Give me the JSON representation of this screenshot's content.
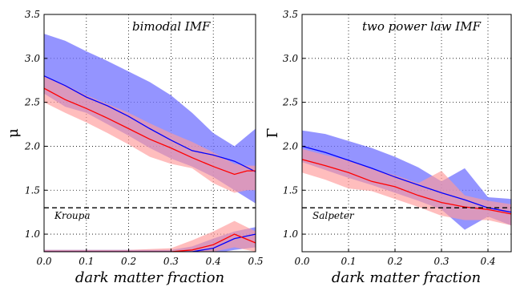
{
  "chart_data": [
    {
      "type": "area",
      "title": "",
      "annotation": "bimodal IMF",
      "xlabel": "dark matter fraction",
      "ylabel": "μ",
      "xlim": [
        0.0,
        0.5
      ],
      "ylim": [
        0.8,
        3.5
      ],
      "xticks": [
        "0.0",
        "0.1",
        "0.2",
        "0.3",
        "0.4",
        "0.5"
      ],
      "yticks": [
        "1.0",
        "1.5",
        "2.0",
        "2.5",
        "3.0",
        "3.5"
      ],
      "grid": true,
      "reference_line": {
        "label": "Kroupa",
        "y": 1.3
      },
      "colors": {
        "blue": "#0000ff",
        "red": "#ff0000",
        "blue_band": "#7070ff",
        "red_band": "#ff9999"
      },
      "series": [
        {
          "color": "blue",
          "x": [
            0.0,
            0.05,
            0.1,
            0.15,
            0.2,
            0.25,
            0.3,
            0.35,
            0.4,
            0.45,
            0.5
          ],
          "values": [
            2.8,
            2.69,
            2.56,
            2.46,
            2.34,
            2.2,
            2.07,
            1.95,
            1.9,
            1.83,
            1.71
          ],
          "band_low": [
            2.6,
            2.45,
            2.38,
            2.25,
            2.12,
            1.98,
            1.86,
            1.77,
            1.65,
            1.5,
            1.35
          ],
          "band_high": [
            3.28,
            3.2,
            3.08,
            2.97,
            2.85,
            2.73,
            2.58,
            2.38,
            2.15,
            2.0,
            2.2
          ]
        },
        {
          "color": "red",
          "x": [
            0.0,
            0.05,
            0.1,
            0.15,
            0.2,
            0.25,
            0.3,
            0.35,
            0.4,
            0.45,
            0.48,
            0.5
          ],
          "values": [
            2.66,
            2.53,
            2.43,
            2.32,
            2.2,
            2.08,
            1.98,
            1.87,
            1.77,
            1.68,
            1.72,
            1.72
          ],
          "band_low": [
            2.5,
            2.38,
            2.27,
            2.15,
            2.02,
            1.88,
            1.8,
            1.75,
            1.58,
            1.47,
            1.5,
            1.5
          ],
          "band_high": [
            2.8,
            2.7,
            2.58,
            2.48,
            2.38,
            2.26,
            2.15,
            2.05,
            1.93,
            1.8,
            1.78,
            1.78
          ]
        },
        {
          "color": "blue",
          "x": [
            0.0,
            0.1,
            0.2,
            0.3,
            0.35,
            0.4,
            0.45,
            0.5
          ],
          "values": [
            0.8,
            0.8,
            0.8,
            0.8,
            0.8,
            0.84,
            0.95,
            1.0
          ],
          "band_low": [
            0.78,
            0.78,
            0.78,
            0.78,
            0.78,
            0.78,
            0.82,
            0.85
          ],
          "band_high": [
            0.82,
            0.82,
            0.82,
            0.82,
            0.86,
            0.95,
            1.03,
            1.08
          ]
        },
        {
          "color": "red",
          "x": [
            0.0,
            0.1,
            0.2,
            0.3,
            0.35,
            0.4,
            0.45,
            0.5
          ],
          "values": [
            0.8,
            0.8,
            0.8,
            0.8,
            0.82,
            0.88,
            1.0,
            0.9
          ],
          "band_low": [
            0.78,
            0.78,
            0.78,
            0.78,
            0.78,
            0.8,
            0.85,
            0.8
          ],
          "band_high": [
            0.82,
            0.82,
            0.82,
            0.84,
            0.93,
            1.03,
            1.15,
            1.03
          ]
        }
      ]
    },
    {
      "type": "area",
      "title": "",
      "annotation": "two power law IMF",
      "xlabel": "dark matter fraction",
      "ylabel": "Γ",
      "xlim": [
        0.0,
        0.45
      ],
      "ylim": [
        0.8,
        3.5
      ],
      "xticks": [
        "0.0",
        "0.1",
        "0.2",
        "0.3",
        "0.4"
      ],
      "yticks": [
        "1.0",
        "1.5",
        "2.0",
        "2.5",
        "3.0",
        "3.5"
      ],
      "grid": true,
      "reference_line": {
        "label": "Salpeter",
        "y": 1.3
      },
      "colors": {
        "blue": "#0000ff",
        "red": "#ff0000",
        "blue_band": "#7070ff",
        "red_band": "#ff9999"
      },
      "series": [
        {
          "color": "blue",
          "x": [
            0.0,
            0.05,
            0.1,
            0.15,
            0.2,
            0.25,
            0.3,
            0.35,
            0.4,
            0.45
          ],
          "values": [
            2.0,
            1.93,
            1.84,
            1.75,
            1.65,
            1.56,
            1.47,
            1.39,
            1.3,
            1.25
          ],
          "band_low": [
            1.82,
            1.73,
            1.64,
            1.56,
            1.47,
            1.38,
            1.28,
            1.05,
            1.2,
            1.1
          ],
          "band_high": [
            2.18,
            2.14,
            2.06,
            1.98,
            1.88,
            1.76,
            1.6,
            1.75,
            1.42,
            1.4
          ]
        },
        {
          "color": "red",
          "x": [
            0.0,
            0.05,
            0.1,
            0.15,
            0.2,
            0.25,
            0.3,
            0.35,
            0.4,
            0.45
          ],
          "values": [
            1.85,
            1.78,
            1.7,
            1.6,
            1.54,
            1.44,
            1.36,
            1.31,
            1.28,
            1.23
          ],
          "band_low": [
            1.7,
            1.62,
            1.52,
            1.49,
            1.4,
            1.31,
            1.21,
            1.16,
            1.16,
            1.1
          ],
          "band_high": [
            1.97,
            1.9,
            1.84,
            1.74,
            1.67,
            1.58,
            1.72,
            1.44,
            1.38,
            1.34
          ]
        }
      ]
    }
  ]
}
